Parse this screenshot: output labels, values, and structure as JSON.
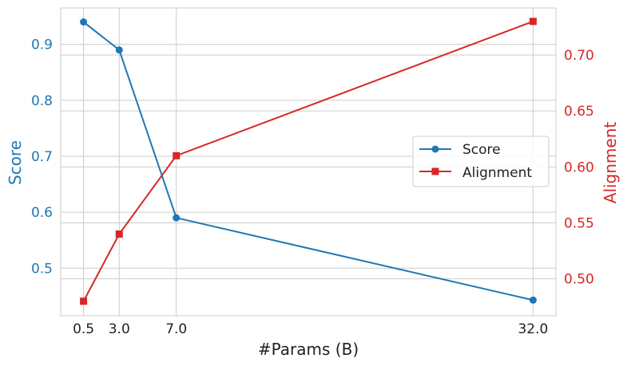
{
  "chart_data": {
    "type": "line",
    "xlabel": "#Params (B)",
    "x": [
      0.5,
      3.0,
      7.0,
      32.0
    ],
    "x_tick_labels": [
      "0.5",
      "3.0",
      "7.0",
      "32.0"
    ],
    "xlim": [
      -1.1,
      33.6
    ],
    "grid": true,
    "legend_position": "center-right",
    "left_axis": {
      "label": "Score",
      "color": "#1f77b4",
      "ylim": [
        0.415,
        0.965
      ],
      "ticks": [
        0.5,
        0.6,
        0.7,
        0.8,
        0.9
      ],
      "tick_labels": [
        "0.5",
        "0.6",
        "0.7",
        "0.8",
        "0.9"
      ]
    },
    "right_axis": {
      "label": "Alignment",
      "color": "#d62728",
      "ylim": [
        0.467,
        0.742
      ],
      "ticks": [
        0.5,
        0.55,
        0.6,
        0.65,
        0.7
      ],
      "tick_labels": [
        "0.50",
        "0.55",
        "0.60",
        "0.65",
        "0.70"
      ]
    },
    "series": [
      {
        "name": "Score",
        "axis": "left",
        "color": "#1f77b4",
        "marker": "circle",
        "values": [
          0.94,
          0.89,
          0.59,
          0.443
        ]
      },
      {
        "name": "Alignment",
        "axis": "right",
        "color": "#d62728",
        "marker": "square",
        "values": [
          0.48,
          0.54,
          0.61,
          0.73
        ]
      }
    ]
  }
}
